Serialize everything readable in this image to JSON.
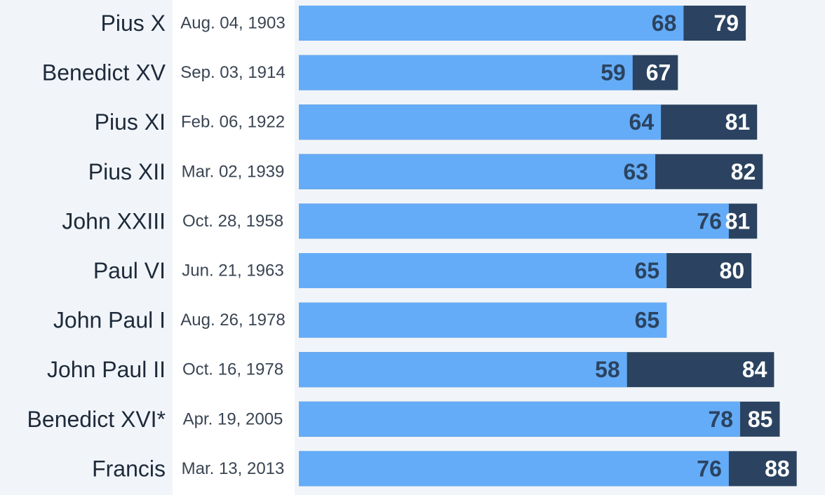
{
  "chart_data": {
    "type": "overlap-bar",
    "categories": [
      "Pius X",
      "Benedict XV",
      "Pius XI",
      "Pius XII",
      "John XXIII",
      "Paul VI",
      "John Paul I",
      "John Paul II",
      "Benedict XVI*",
      "Francis"
    ],
    "dates": [
      "Aug. 04, 1903",
      "Sep. 03, 1914",
      "Feb. 06, 1922",
      "Mar. 02, 1939",
      "Oct. 28, 1958",
      "Jun. 21, 1963",
      "Aug. 26, 1978",
      "Oct. 16, 1978",
      "Apr. 19, 2005",
      "Mar. 13, 2013"
    ],
    "series": [
      {
        "color": "#64acf7",
        "values": [
          68,
          59,
          64,
          63,
          76,
          65,
          65,
          58,
          78,
          76
        ]
      },
      {
        "color": "#2b4360",
        "values": [
          79,
          67,
          81,
          82,
          81,
          80,
          65,
          84,
          85,
          88
        ],
        "value_labels": [
          "79",
          "67",
          "81",
          "82",
          "81",
          "80",
          null,
          "84",
          "85",
          "88"
        ]
      }
    ],
    "xlim": [
      0,
      93
    ]
  }
}
